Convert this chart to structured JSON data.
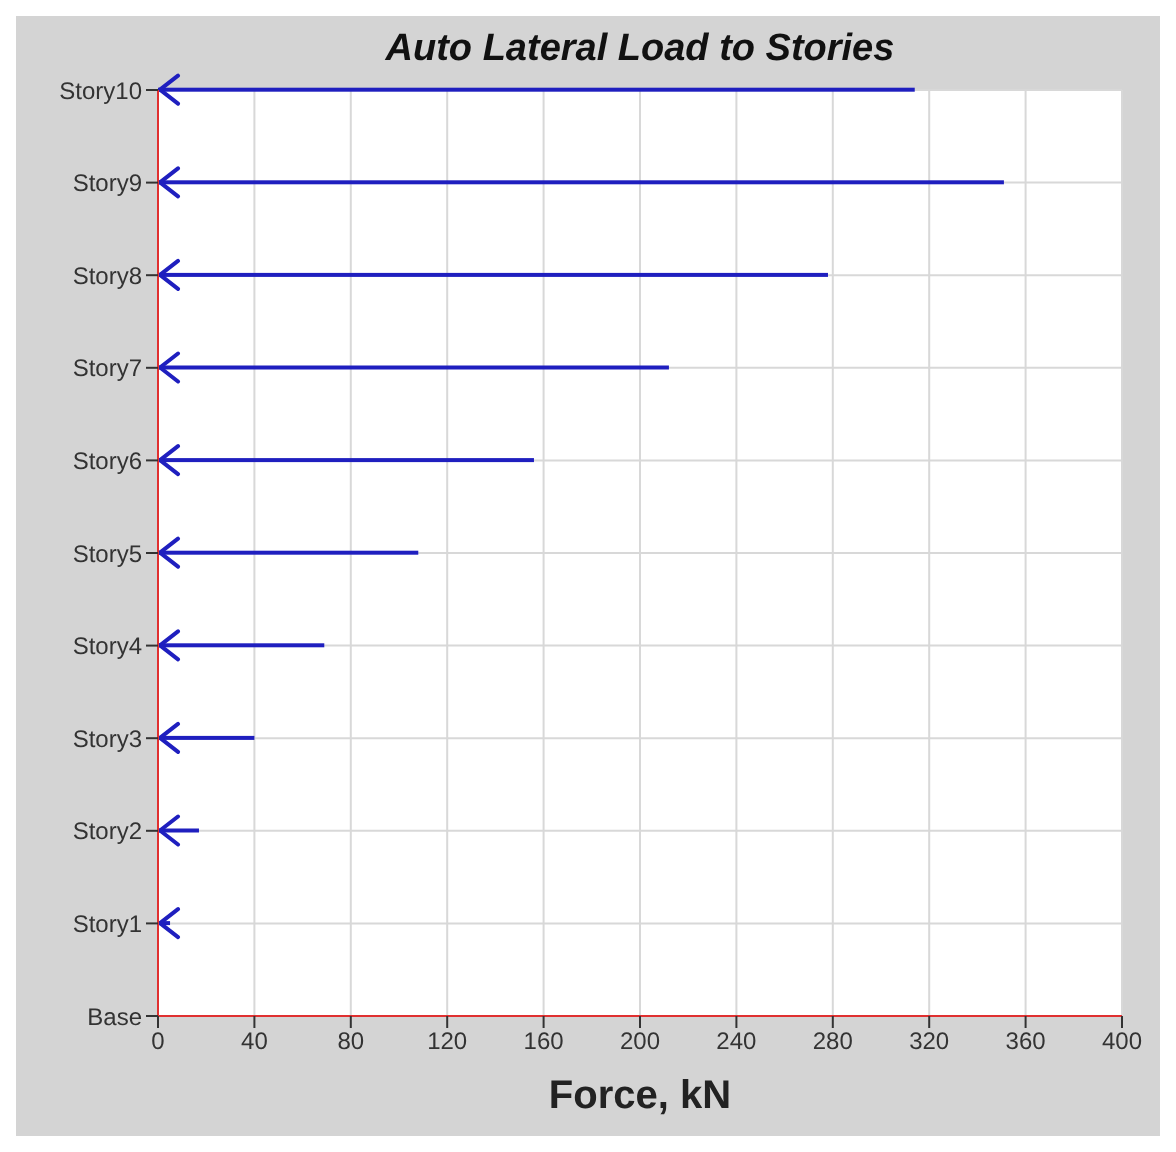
{
  "chart_data": {
    "type": "bar",
    "orientation": "horizontal",
    "title": "Auto Lateral Load to Stories",
    "xlabel": "Force, kN",
    "categories": [
      "Story10",
      "Story9",
      "Story8",
      "Story7",
      "Story6",
      "Story5",
      "Story4",
      "Story3",
      "Story2",
      "Story1",
      "Base"
    ],
    "values": [
      314,
      351,
      278,
      212,
      156,
      108,
      69,
      40,
      17,
      5,
      null
    ],
    "color": "#1f1fbf",
    "xlim": [
      0,
      400
    ],
    "xticks": [
      0,
      40,
      80,
      120,
      160,
      200,
      240,
      280,
      320,
      360,
      400
    ],
    "grid": true
  }
}
